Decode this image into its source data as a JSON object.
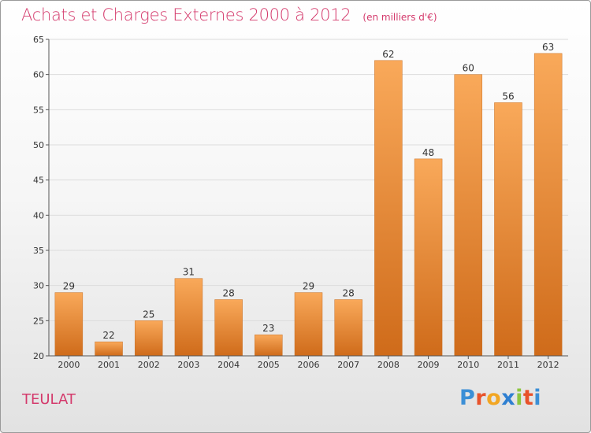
{
  "title": "Achats et Charges Externes 2000 à 2012",
  "subtitle": "(en milliers d'€)",
  "commune": "TEULAT",
  "logo": {
    "letters": [
      "P",
      "r",
      "o",
      "x",
      "i",
      "t",
      "i"
    ],
    "colors": [
      "#3b8fd6",
      "#e8532b",
      "#f2a623",
      "#2e7fd1",
      "#8cc63f",
      "#e8532b",
      "#3b8fd6"
    ]
  },
  "colors": {
    "accent": "#d43a6c",
    "bar_light": "#f9a95a",
    "bar_dark": "#cf6b1a"
  },
  "chart_data": {
    "type": "bar",
    "categories": [
      "2000",
      "2001",
      "2002",
      "2003",
      "2004",
      "2005",
      "2006",
      "2007",
      "2008",
      "2009",
      "2010",
      "2011",
      "2012"
    ],
    "values": [
      29,
      22,
      25,
      31,
      28,
      23,
      29,
      28,
      62,
      48,
      60,
      56,
      63
    ],
    "ylim": [
      20,
      65
    ],
    "yticks": [
      20,
      25,
      30,
      35,
      40,
      45,
      50,
      55,
      60,
      65
    ],
    "grid": true
  }
}
